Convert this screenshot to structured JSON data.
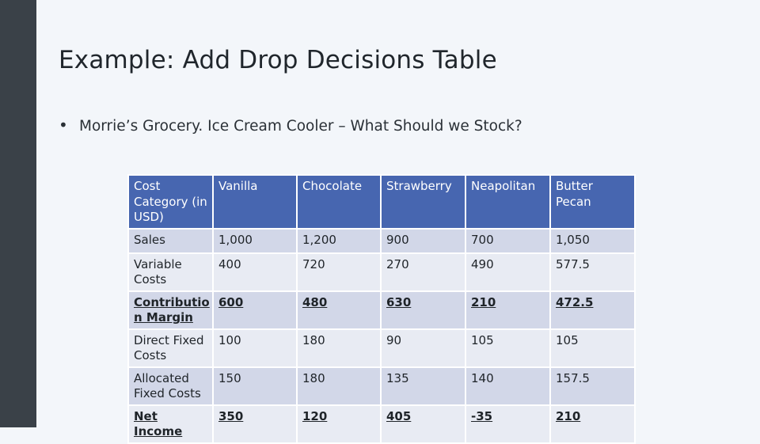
{
  "slide": {
    "title": "Example: Add Drop Decisions Table",
    "bullet_symbol": "•",
    "bullet_text": "Morrie’s Grocery. Ice Cream Cooler – What Should we Stock?"
  },
  "table": {
    "headers": [
      "Cost Category (in USD)",
      "Vanilla",
      "Chocolate",
      "Strawberry",
      "Neapolitan",
      "Butter Pecan"
    ],
    "rows": [
      {
        "label": "Sales",
        "values": [
          "1,000",
          "1,200",
          "900",
          "700",
          "1,050"
        ]
      },
      {
        "label": "Variable Costs",
        "values": [
          "400",
          "720",
          "270",
          "490",
          "577.5"
        ]
      },
      {
        "label": "Contributio n Margin",
        "values": [
          "600",
          "480",
          "630",
          "210",
          "472.5"
        ]
      },
      {
        "label": "Direct Fixed Costs",
        "values": [
          "100",
          "180",
          "90",
          "105",
          "105"
        ]
      },
      {
        "label": "Allocated Fixed Costs",
        "values": [
          "150",
          "180",
          "135",
          "140",
          "157.5"
        ]
      },
      {
        "label": "Net Income",
        "values": [
          "350",
          "120",
          "405",
          "-35",
          "210"
        ]
      }
    ]
  }
}
